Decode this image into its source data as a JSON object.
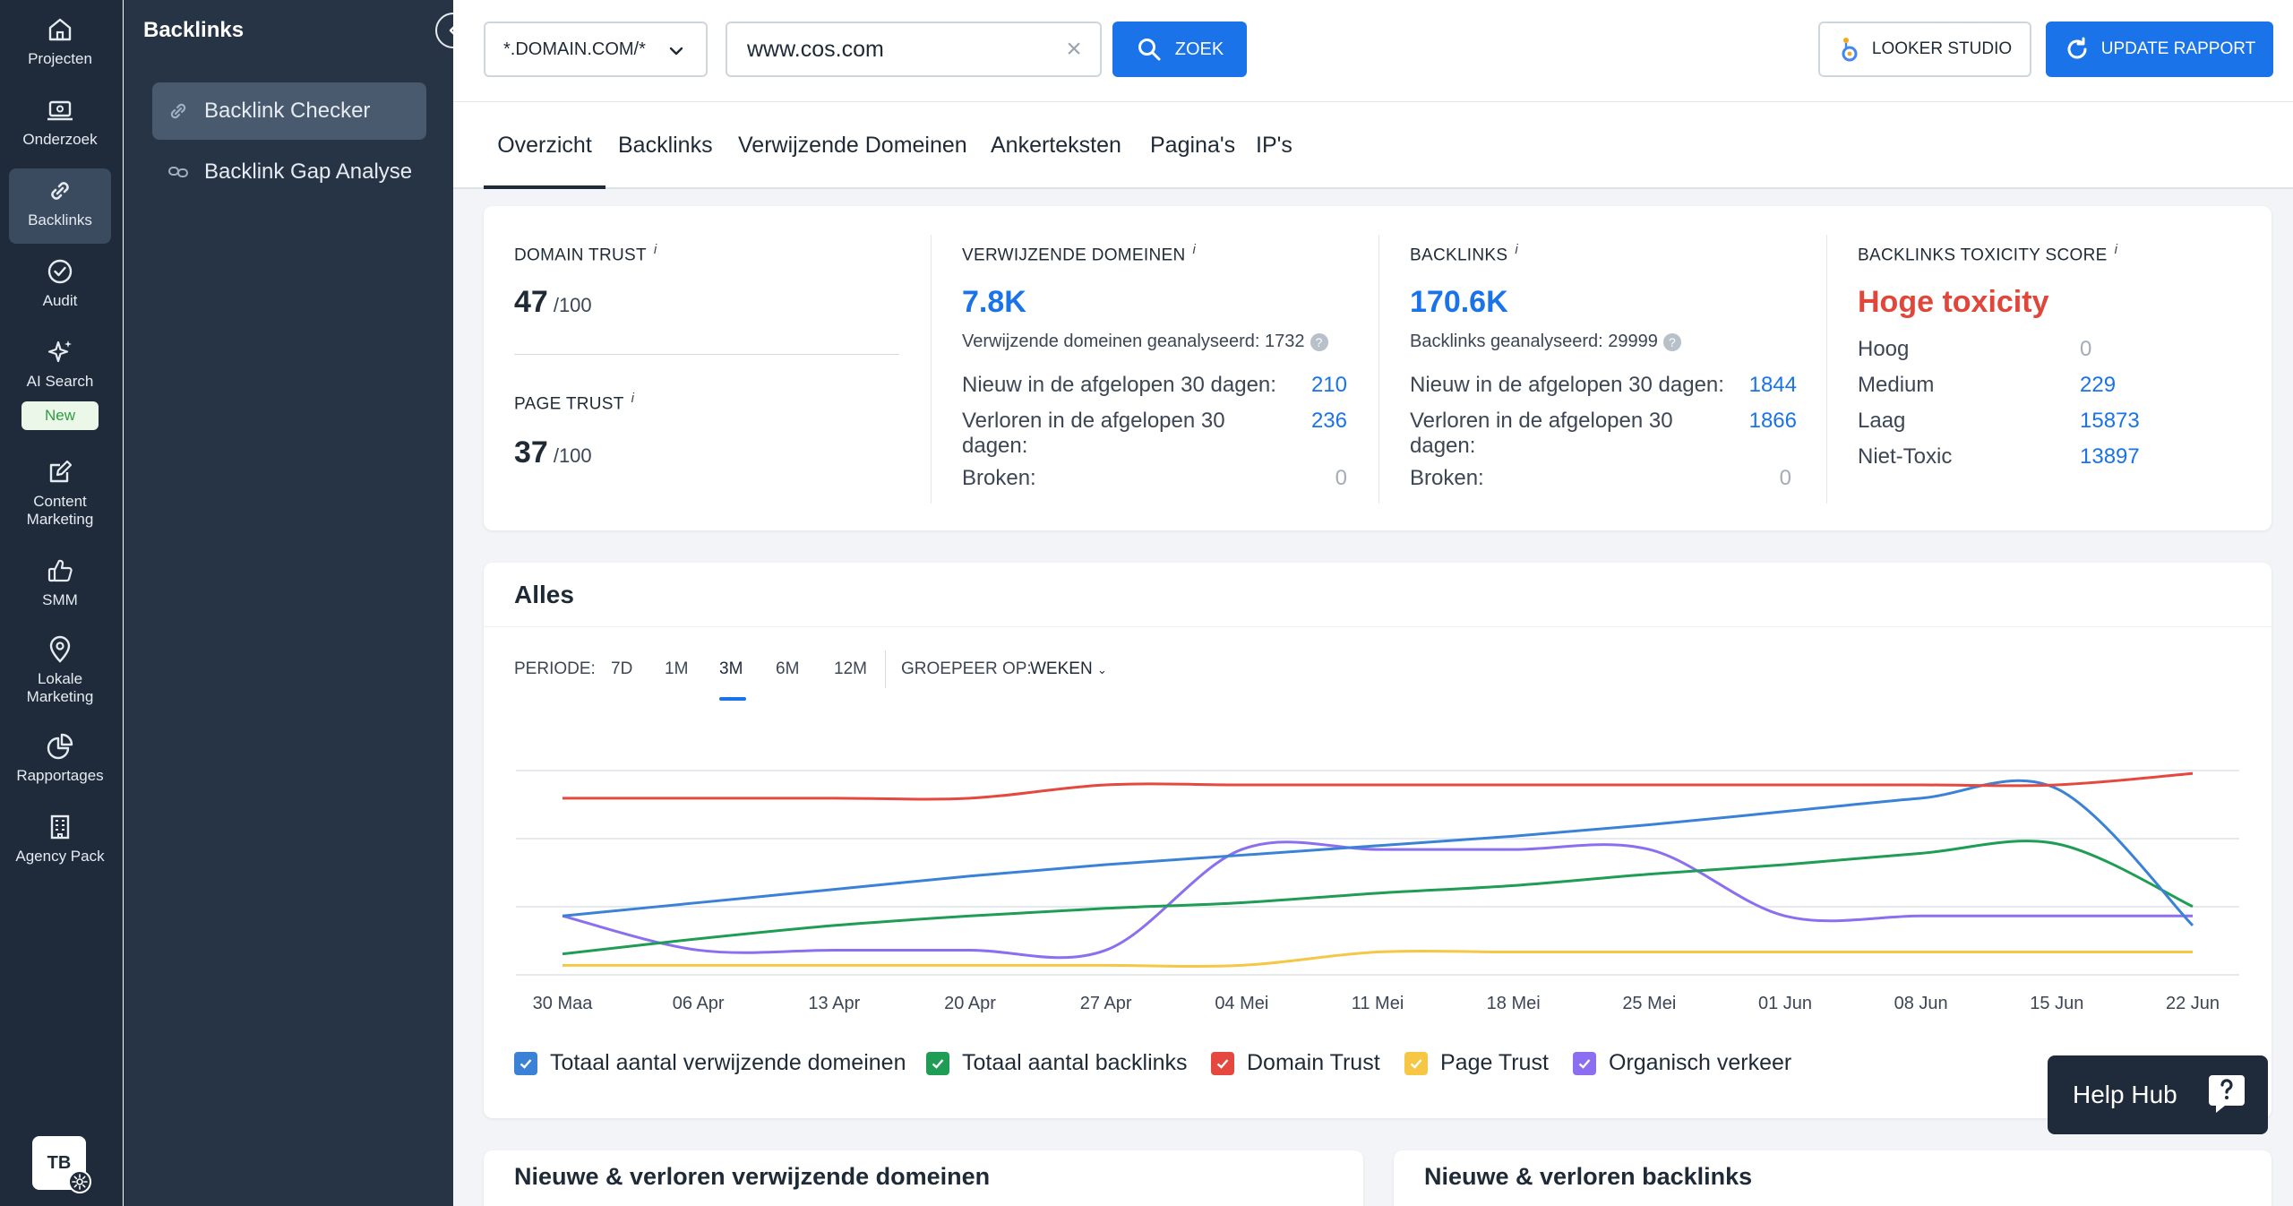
{
  "rail": {
    "items": [
      {
        "label": "Projecten",
        "icon": "home-icon"
      },
      {
        "label": "Onderzoek",
        "icon": "laptop-icon"
      },
      {
        "label": "Backlinks",
        "icon": "link-icon"
      },
      {
        "label": "Audit",
        "icon": "check-circle-icon"
      },
      {
        "label": "AI Search",
        "icon": "sparkle-icon"
      },
      {
        "label": "Content Marketing",
        "icon": "edit-icon"
      },
      {
        "label": "SMM",
        "icon": "thumbs-up-icon"
      },
      {
        "label": "Lokale Marketing",
        "icon": "map-pin-icon"
      },
      {
        "label": "Rapportages",
        "icon": "pie-chart-icon"
      },
      {
        "label": "Agency Pack",
        "icon": "building-icon"
      }
    ],
    "new_badge": "New",
    "avatar": "TB"
  },
  "subnav": {
    "title": "Backlinks",
    "items": [
      "Backlink Checker",
      "Backlink Gap Analyse"
    ]
  },
  "topbar": {
    "domain_mode": "*.DOMAIN.COM/*",
    "search_value": "www.cos.com",
    "search_button": "ZOEK",
    "looker_button": "LOOKER STUDIO",
    "update_button": "UPDATE RAPPORT"
  },
  "tabs": [
    "Overzicht",
    "Backlinks",
    "Verwijzende Domeinen",
    "Ankerteksten",
    "Pagina's",
    "IP's"
  ],
  "stats": {
    "domain_trust": {
      "label": "DOMAIN TRUST",
      "value": "47",
      "suffix": "/100"
    },
    "page_trust": {
      "label": "PAGE TRUST",
      "value": "37",
      "suffix": "/100"
    },
    "info_glyph": "i",
    "help_glyph": "?",
    "ref_domains": {
      "label": "VERWIJZENDE DOMEINEN",
      "value": "7.8K",
      "analyzed": "Verwijzende domeinen geanalyseerd: 1732",
      "rows": [
        {
          "label": "Nieuw in de afgelopen 30 dagen:",
          "value": "210"
        },
        {
          "label": "Verloren in de afgelopen 30 dagen:",
          "value": "236"
        },
        {
          "label": "Broken:",
          "value": "0"
        }
      ]
    },
    "backlinks": {
      "label": "BACKLINKS",
      "value": "170.6K",
      "analyzed": "Backlinks geanalyseerd: 29999",
      "rows": [
        {
          "label": "Nieuw in de afgelopen 30 dagen:",
          "value": "1844"
        },
        {
          "label": "Verloren in de afgelopen 30 dagen:",
          "value": "1866"
        },
        {
          "label": "Broken:",
          "value": "0"
        }
      ]
    },
    "toxicity": {
      "label": "BACKLINKS TOXICITY SCORE",
      "value": "Hoge toxicity",
      "rows": [
        {
          "label": "Hoog",
          "value": "0"
        },
        {
          "label": "Medium",
          "value": "229"
        },
        {
          "label": "Laag",
          "value": "15873"
        },
        {
          "label": "Niet-Toxic",
          "value": "13897"
        }
      ]
    }
  },
  "chart_section": {
    "title": "Alles",
    "period_label": "PERIODE:",
    "periods": [
      "7D",
      "1M",
      "3M",
      "6M",
      "12M"
    ],
    "active_period": "3M",
    "group_label": "GROEPEER OP:",
    "group_value": "WEKEN"
  },
  "chart_data": {
    "type": "line",
    "x": [
      "30 Maa",
      "06 Apr",
      "13 Apr",
      "20 Apr",
      "27 Apr",
      "04 Mei",
      "11 Mei",
      "18 Mei",
      "25 Mei",
      "01 Jun",
      "08 Jun",
      "15 Jun",
      "22 Jun"
    ],
    "y_axis_labels_shown": false,
    "grid": true,
    "series": [
      {
        "name": "Totaal aantal verwijzende domeinen",
        "color": "#3b82d6",
        "values": [
          0.31,
          0.38,
          0.45,
          0.52,
          0.58,
          0.63,
          0.68,
          0.73,
          0.79,
          0.86,
          0.93,
          0.98,
          0.26
        ]
      },
      {
        "name": "Totaal aantal backlinks",
        "color": "#1f9d55",
        "values": [
          0.11,
          0.19,
          0.26,
          0.31,
          0.35,
          0.38,
          0.43,
          0.47,
          0.53,
          0.58,
          0.64,
          0.69,
          0.36
        ]
      },
      {
        "name": "Domain Trust",
        "color": "#e5483e",
        "values": [
          0.93,
          0.93,
          0.93,
          0.93,
          1.0,
          1.0,
          1.0,
          1.0,
          1.0,
          1.0,
          1.0,
          1.0,
          1.06
        ]
      },
      {
        "name": "Page Trust",
        "color": "#f6c744",
        "values": [
          0.05,
          0.05,
          0.05,
          0.05,
          0.05,
          0.05,
          0.12,
          0.12,
          0.12,
          0.12,
          0.12,
          0.12,
          0.12
        ]
      },
      {
        "name": "Organisch verkeer",
        "color": "#8b6ff0",
        "values": [
          0.31,
          0.13,
          0.13,
          0.13,
          0.13,
          0.66,
          0.66,
          0.66,
          0.66,
          0.31,
          0.31,
          0.31,
          0.31
        ]
      }
    ]
  },
  "bottom_cards": [
    "Nieuwe & verloren verwijzende domeinen",
    "Nieuwe & verloren backlinks"
  ],
  "help_hub": "Help Hub"
}
